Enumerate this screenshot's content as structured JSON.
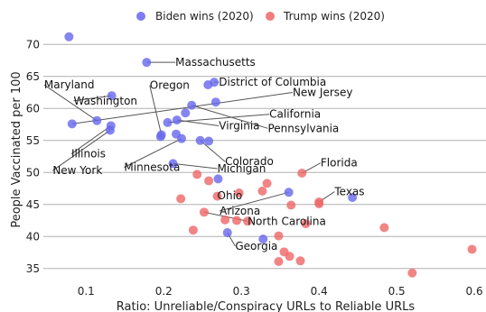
{
  "chart_data": {
    "type": "scatter",
    "xlabel": "Ratio: Unreliable/Conspiracy URLs to Reliable URLs",
    "ylabel": "People Vaccinated per 100",
    "xlim": [
      0.045,
      0.615
    ],
    "ylim": [
      33,
      73
    ],
    "xticks": [
      0.1,
      0.2,
      0.3,
      0.4,
      0.5,
      0.6
    ],
    "xtick_labels": [
      "0.1",
      "0.2",
      "0.3",
      "0.4",
      "0.5",
      "0.6"
    ],
    "yticks": [
      35,
      40,
      45,
      50,
      55,
      60,
      65,
      70
    ],
    "ytick_labels": [
      "35",
      "40",
      "45",
      "50",
      "55",
      "60",
      "65",
      "70"
    ],
    "grid": "horizontal",
    "legend_position": "top",
    "series": [
      {
        "name": "Biden wins (2020)",
        "color": "#6666ee",
        "points": [
          [
            0.078,
            71.2
          ],
          [
            0.178,
            67.2
          ],
          [
            0.265,
            64.1
          ],
          [
            0.257,
            63.7
          ],
          [
            0.133,
            62.0
          ],
          [
            0.082,
            57.6
          ],
          [
            0.114,
            58.1
          ],
          [
            0.132,
            57.3
          ],
          [
            0.131,
            56.6
          ],
          [
            0.196,
            55.6
          ],
          [
            0.197,
            55.9
          ],
          [
            0.205,
            57.8
          ],
          [
            0.217,
            58.2
          ],
          [
            0.228,
            59.3
          ],
          [
            0.236,
            60.5
          ],
          [
            0.267,
            61.0
          ],
          [
            0.216,
            56.0
          ],
          [
            0.223,
            55.3
          ],
          [
            0.247,
            55.0
          ],
          [
            0.258,
            54.9
          ],
          [
            0.212,
            51.4
          ],
          [
            0.27,
            49.0
          ],
          [
            0.361,
            46.9
          ],
          [
            0.443,
            46.1
          ],
          [
            0.282,
            40.6
          ],
          [
            0.328,
            39.6
          ]
        ]
      },
      {
        "name": "Trump wins (2020)",
        "color": "#ee6666",
        "points": [
          [
            0.243,
            49.7
          ],
          [
            0.258,
            48.7
          ],
          [
            0.378,
            49.9
          ],
          [
            0.333,
            48.3
          ],
          [
            0.327,
            47.1
          ],
          [
            0.269,
            46.3
          ],
          [
            0.297,
            46.8
          ],
          [
            0.222,
            45.9
          ],
          [
            0.364,
            44.9
          ],
          [
            0.4,
            45.4
          ],
          [
            0.4,
            45.1
          ],
          [
            0.252,
            43.8
          ],
          [
            0.279,
            42.6
          ],
          [
            0.294,
            42.5
          ],
          [
            0.308,
            42.4
          ],
          [
            0.383,
            42.0
          ],
          [
            0.484,
            41.4
          ],
          [
            0.238,
            41.0
          ],
          [
            0.348,
            40.1
          ],
          [
            0.355,
            37.6
          ],
          [
            0.362,
            36.9
          ],
          [
            0.348,
            36.1
          ],
          [
            0.376,
            36.2
          ],
          [
            0.52,
            34.3
          ],
          [
            0.597,
            38.0
          ]
        ]
      }
    ],
    "annotations": [
      {
        "text": "Massachusetts",
        "point": [
          0.178,
          67.2
        ],
        "text_pos": [
          0.215,
          67.2
        ]
      },
      {
        "text": "District of Columbia",
        "point": [
          0.265,
          64.1
        ],
        "text_pos": [
          0.271,
          64.1
        ]
      },
      {
        "text": "Oregon",
        "point": [
          0.197,
          55.9
        ],
        "text_pos": [
          0.182,
          63.6
        ]
      },
      {
        "text": "Maryland",
        "point": [
          0.114,
          58.1
        ],
        "text_pos": [
          0.046,
          63.7
        ]
      },
      {
        "text": "Washington",
        "point": [
          0.133,
          62.0
        ],
        "text_pos": [
          0.084,
          61.2
        ]
      },
      {
        "text": "New Jersey",
        "point": [
          0.082,
          57.6
        ],
        "text_pos": [
          0.366,
          62.5
        ]
      },
      {
        "text": "California",
        "point": [
          0.205,
          57.8
        ],
        "text_pos": [
          0.336,
          59.1
        ]
      },
      {
        "text": "Pennsylvania",
        "point": [
          0.236,
          60.5
        ],
        "text_pos": [
          0.334,
          56.9
        ]
      },
      {
        "text": "Virginia",
        "point": [
          0.217,
          58.2
        ],
        "text_pos": [
          0.271,
          57.3
        ]
      },
      {
        "text": "Illinois",
        "point": [
          0.132,
          57.3
        ],
        "text_pos": [
          0.081,
          52.9
        ]
      },
      {
        "text": "New York",
        "point": [
          0.131,
          56.6
        ],
        "text_pos": [
          0.057,
          50.3
        ]
      },
      {
        "text": "Minnesota",
        "point": [
          0.223,
          55.3
        ],
        "text_pos": [
          0.149,
          50.8
        ]
      },
      {
        "text": "Colorado",
        "point": [
          0.247,
          55.0
        ],
        "text_pos": [
          0.279,
          51.7
        ]
      },
      {
        "text": "Michigan",
        "point": [
          0.212,
          51.4
        ],
        "text_pos": [
          0.269,
          50.6
        ]
      },
      {
        "text": "Florida",
        "point": [
          0.378,
          49.9
        ],
        "text_pos": [
          0.402,
          51.5
        ]
      },
      {
        "text": "Texas",
        "point": [
          0.4,
          45.4
        ],
        "text_pos": [
          0.42,
          47.0
        ]
      },
      {
        "text": "Ohio",
        "point": [
          0.269,
          46.3
        ],
        "text_pos": [
          0.269,
          46.4
        ]
      },
      {
        "text": "Arizona",
        "point": [
          0.361,
          46.9
        ],
        "text_pos": [
          0.272,
          44.0
        ]
      },
      {
        "text": "North Carolina",
        "point": [
          0.252,
          43.8
        ],
        "text_pos": [
          0.308,
          42.4
        ]
      },
      {
        "text": "Georgia",
        "point": [
          0.282,
          40.6
        ],
        "text_pos": [
          0.292,
          38.5
        ]
      }
    ]
  }
}
